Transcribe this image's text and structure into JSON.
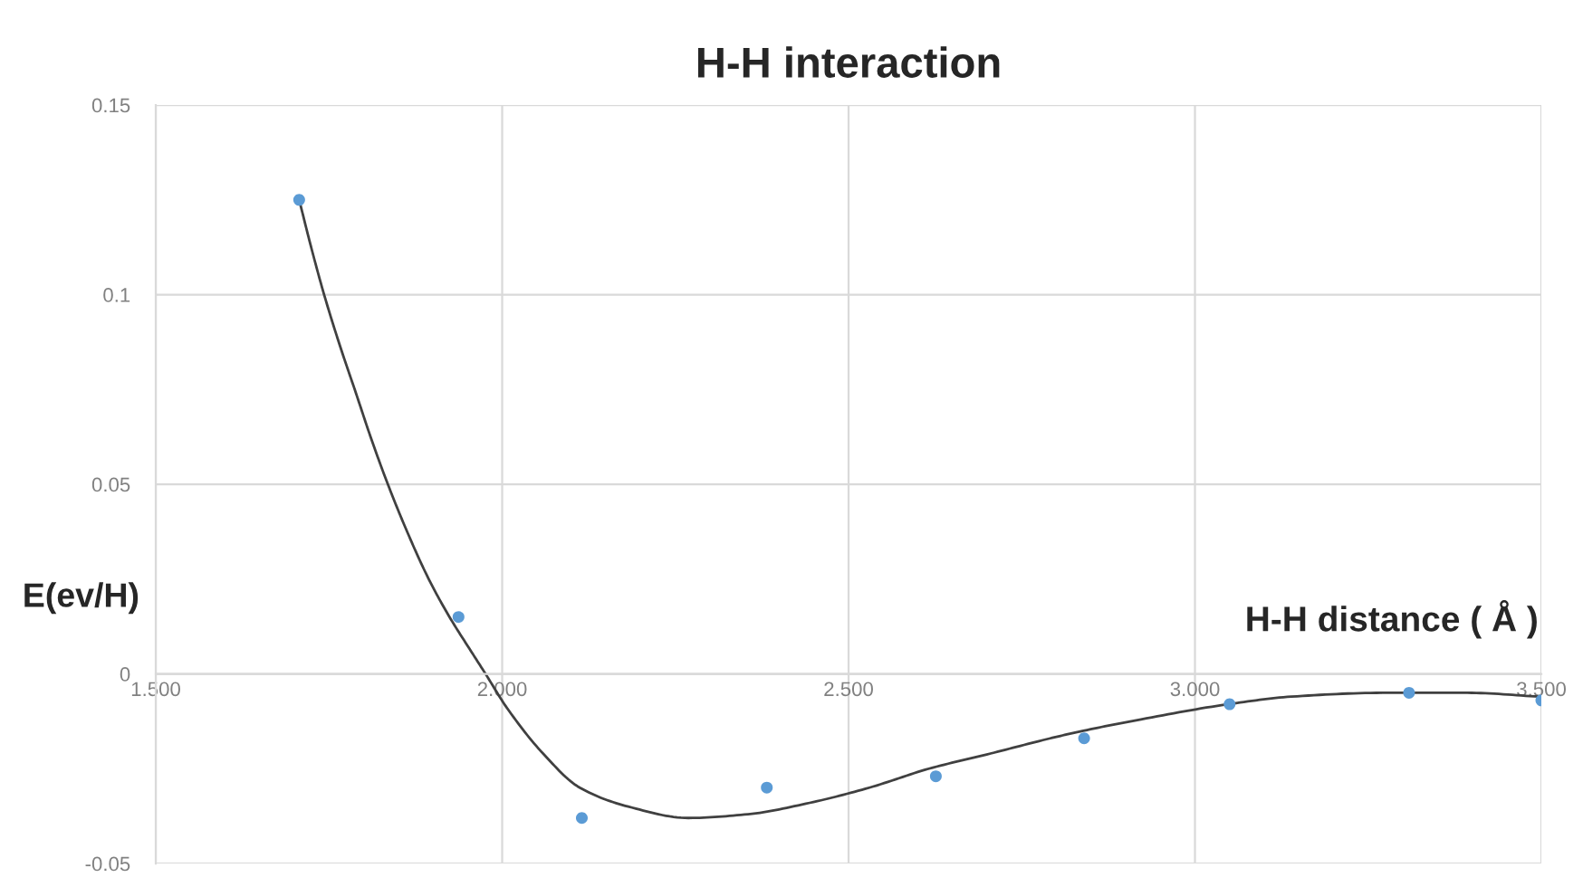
{
  "chart_data": {
    "type": "scatter",
    "title": "H-H interaction",
    "xlabel": "H-H distance ( Å )",
    "ylabel": "E(ev/H)",
    "xlim": [
      1.5,
      3.5
    ],
    "ylim": [
      -0.05,
      0.15
    ],
    "xticks": [
      {
        "value": 1.5,
        "label": "1.500"
      },
      {
        "value": 2.0,
        "label": "2.000"
      },
      {
        "value": 2.5,
        "label": "2.500"
      },
      {
        "value": 3.0,
        "label": "3.000"
      },
      {
        "value": 3.5,
        "label": "3.500"
      }
    ],
    "yticks": [
      -0.05,
      0,
      0.05,
      0.1,
      0.15
    ],
    "grid": true,
    "marker": "circle",
    "series": [
      {
        "color": "#5b9bd5",
        "x": [
          1.707,
          1.937,
          2.115,
          2.382,
          2.626,
          2.84,
          3.05,
          3.309,
          3.5
        ],
        "values": [
          0.125,
          0.015,
          -0.038,
          -0.03,
          -0.027,
          -0.017,
          -0.008,
          -0.005,
          -0.007
        ]
      },
      {
        "type": "line",
        "color": "#404040",
        "marker": "none",
        "line_style": "solid",
        "x": [
          1.707,
          1.725,
          1.743,
          1.765,
          1.789,
          1.811,
          1.835,
          1.864,
          1.894,
          1.924,
          1.955,
          1.976,
          2.007,
          2.059,
          2.112,
          2.182,
          2.269,
          2.355,
          2.444,
          2.53,
          2.616,
          2.705,
          2.791,
          2.839,
          2.922,
          3.048,
          3.139,
          3.27,
          3.393,
          3.497
        ],
        "values": [
          0.125,
          0.112,
          0.1,
          0.087,
          0.074,
          0.062,
          0.05,
          0.037,
          0.025,
          0.015,
          0.006,
          0,
          -0.009,
          -0.021,
          -0.03,
          -0.035,
          -0.038,
          -0.037,
          -0.034,
          -0.03,
          -0.025,
          -0.021,
          -0.017,
          -0.015,
          -0.012,
          -0.008,
          -0.006,
          -0.005,
          -0.005,
          -0.006
        ]
      }
    ]
  }
}
